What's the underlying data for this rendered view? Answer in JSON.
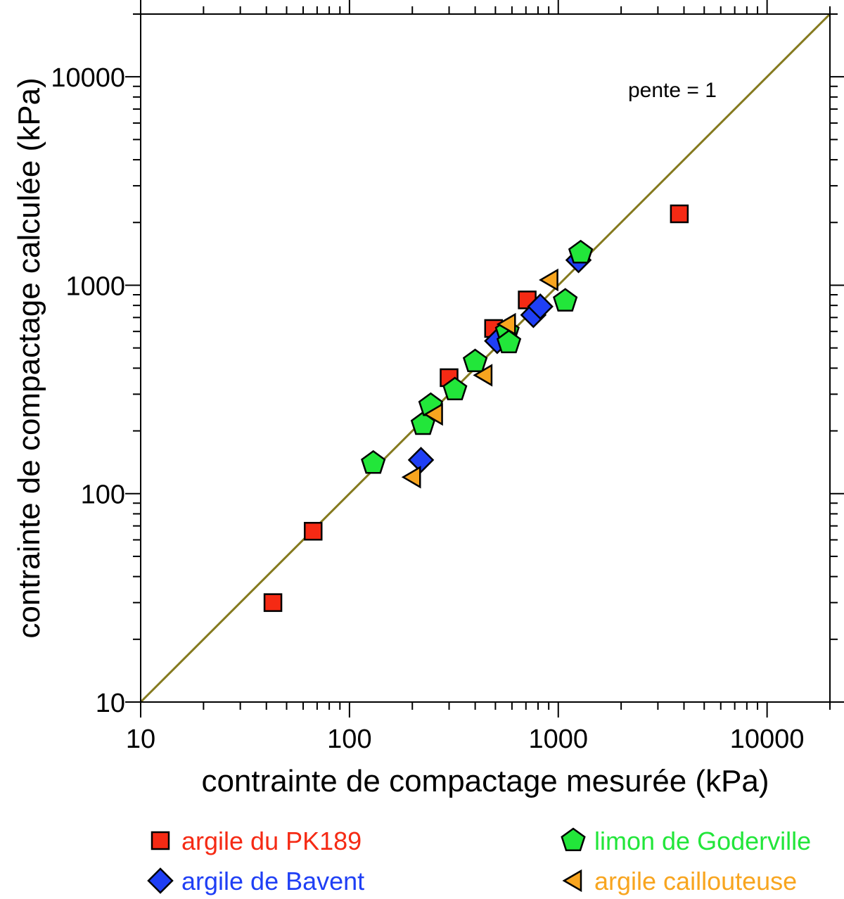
{
  "chart_data": {
    "type": "scatter",
    "title": "",
    "xlabel": "contrainte de compactage mesurée (kPa)",
    "ylabel": "contrainte de compactage calculée (kPa)",
    "xscale": "log",
    "yscale": "log",
    "xlim": [
      10,
      20000
    ],
    "ylim": [
      10,
      20000
    ],
    "x_tick_labels": [
      "10",
      "100",
      "1000",
      "10000"
    ],
    "y_tick_labels": [
      "10",
      "100",
      "1000",
      "10000"
    ],
    "grid": false,
    "legend_position": "bottom",
    "reference_line": {
      "label": "pente = 1",
      "slope": 1,
      "color": "#857a1f"
    },
    "series": [
      {
        "name": "argile du PK189",
        "marker": "square",
        "color": "#f52a14",
        "points": [
          [
            43,
            30
          ],
          [
            67,
            66
          ],
          [
            300,
            360
          ],
          [
            490,
            620
          ],
          [
            710,
            850
          ],
          [
            3800,
            2200
          ]
        ]
      },
      {
        "name": "argile de Bavent",
        "marker": "diamond",
        "color": "#1f3ff5",
        "points": [
          [
            220,
            145
          ],
          [
            510,
            540
          ],
          [
            760,
            720
          ],
          [
            820,
            790
          ],
          [
            1250,
            1320
          ]
        ]
      },
      {
        "name": "limon de Goderville",
        "marker": "pentagon",
        "color": "#22e63a",
        "points": [
          [
            130,
            140
          ],
          [
            225,
            215
          ],
          [
            245,
            265
          ],
          [
            320,
            315
          ],
          [
            400,
            430
          ],
          [
            570,
            600
          ],
          [
            580,
            530
          ],
          [
            1080,
            840
          ],
          [
            1280,
            1430
          ]
        ]
      },
      {
        "name": "argile caillouteuse",
        "marker": "triangle-left",
        "color": "#f8a51f",
        "points": [
          [
            200,
            120
          ],
          [
            255,
            240
          ],
          [
            440,
            370
          ],
          [
            570,
            650
          ],
          [
            910,
            1060
          ]
        ]
      }
    ]
  }
}
